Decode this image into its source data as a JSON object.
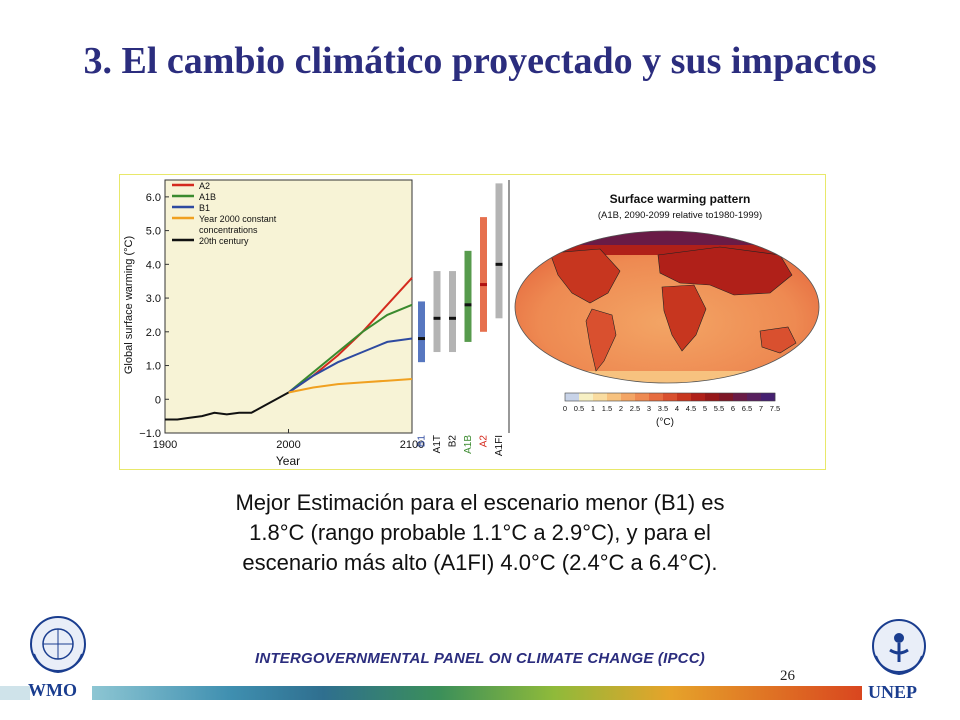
{
  "slide": {
    "title": "3. El cambio climático proyectado y sus impactos",
    "caption_lines": [
      "Mejor Estimación para el escenario menor (B1) es",
      "1.8°C (rango probable 1.1°C a 2.9°C), y para el",
      "escenario más alto (A1FI) 4.0°C (2.4°C a 6.4°C)."
    ],
    "footer": "INTERGOVERNMENTAL PANEL ON CLIMATE CHANGE (IPCC)",
    "page_number": "26",
    "logos": {
      "left": "WMO",
      "right": "UNEP"
    }
  },
  "colors": {
    "title": "#2b2d7e",
    "A2": "#d42a1e",
    "A1B": "#3a8a2e",
    "B1": "#2e4aa0",
    "const": "#f0a020",
    "century": "#111111"
  },
  "chart_data": [
    {
      "type": "line",
      "xlabel": "Year",
      "ylabel": "Global surface warming (°C)",
      "xlim": [
        1900,
        2100
      ],
      "ylim": [
        -1.0,
        6.5
      ],
      "x_ticks": [
        "1900",
        "2000",
        "2100"
      ],
      "y_ticks": [
        "−1.0",
        "0",
        "1.0",
        "2.0",
        "3.0",
        "4.0",
        "5.0",
        "6.0"
      ],
      "legend_position": "top-left",
      "series": [
        {
          "name": "A2",
          "color": "#d42a1e",
          "points": [
            [
              2000,
              0.2
            ],
            [
              2020,
              0.7
            ],
            [
              2040,
              1.3
            ],
            [
              2060,
              2.0
            ],
            [
              2080,
              2.8
            ],
            [
              2100,
              3.6
            ]
          ]
        },
        {
          "name": "A1B",
          "color": "#3a8a2e",
          "points": [
            [
              2000,
              0.2
            ],
            [
              2020,
              0.8
            ],
            [
              2040,
              1.4
            ],
            [
              2060,
              2.0
            ],
            [
              2080,
              2.5
            ],
            [
              2100,
              2.8
            ]
          ]
        },
        {
          "name": "B1",
          "color": "#2e4aa0",
          "points": [
            [
              2000,
              0.2
            ],
            [
              2020,
              0.7
            ],
            [
              2040,
              1.1
            ],
            [
              2060,
              1.4
            ],
            [
              2080,
              1.7
            ],
            [
              2100,
              1.8
            ]
          ]
        },
        {
          "name": "Year 2000 constant",
          "name2": "concentrations",
          "color": "#f0a020",
          "points": [
            [
              2000,
              0.2
            ],
            [
              2020,
              0.35
            ],
            [
              2040,
              0.45
            ],
            [
              2060,
              0.5
            ],
            [
              2080,
              0.55
            ],
            [
              2100,
              0.6
            ]
          ]
        },
        {
          "name": "20th century",
          "color": "#111111",
          "points": [
            [
              1900,
              -0.6
            ],
            [
              1910,
              -0.6
            ],
            [
              1920,
              -0.55
            ],
            [
              1930,
              -0.5
            ],
            [
              1940,
              -0.4
            ],
            [
              1950,
              -0.45
            ],
            [
              1960,
              -0.4
            ],
            [
              1970,
              -0.4
            ],
            [
              1980,
              -0.2
            ],
            [
              1990,
              0.0
            ],
            [
              2000,
              0.2
            ]
          ]
        }
      ]
    },
    {
      "type": "bar",
      "categories": [
        "B1",
        "A1T",
        "B2",
        "A1B",
        "A2",
        "A1FI"
      ],
      "label_colors": [
        "#2e4aa0",
        "#111111",
        "#111111",
        "#3a8a2e",
        "#d42a1e",
        "#111111"
      ],
      "range_colors": [
        "#3a5fb5",
        "#a7a7a7",
        "#a7a7a7",
        "#3a8a2e",
        "#e2572f",
        "#a7a7a7"
      ],
      "ranges": [
        [
          1.1,
          2.9
        ],
        [
          1.4,
          3.8
        ],
        [
          1.4,
          3.8
        ],
        [
          1.7,
          4.4
        ],
        [
          2.0,
          5.4
        ],
        [
          2.4,
          6.4
        ]
      ],
      "best_estimate": [
        1.8,
        2.4,
        2.4,
        2.8,
        3.4,
        4.0
      ]
    },
    {
      "type": "heatmap",
      "title": "Surface warming pattern",
      "subtitle": "(A1B, 2090-2099 relative to1980-1999)",
      "colorbar_ticks": [
        "0",
        "0.5",
        "1",
        "1.5",
        "2",
        "2.5",
        "3",
        "3.5",
        "4",
        "4.5",
        "5",
        "5.5",
        "6",
        "6.5",
        "7",
        "7.5"
      ],
      "colorbar_colors": [
        "#c8d3e8",
        "#f7f0c4",
        "#f9dca0",
        "#f7c27f",
        "#f3a565",
        "#ee8a52",
        "#e66c40",
        "#d9502f",
        "#c7361f",
        "#b02019",
        "#961718",
        "#7e1726",
        "#6a1b46",
        "#58205e",
        "#452070"
      ],
      "units": "(°C)"
    }
  ]
}
